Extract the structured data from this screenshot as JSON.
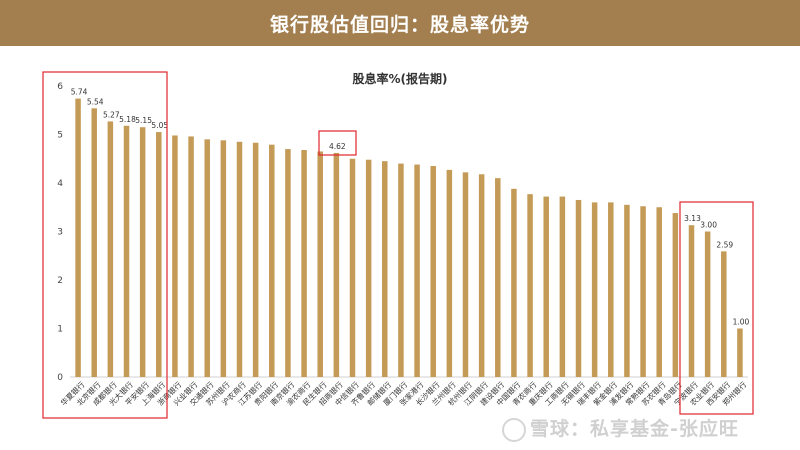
{
  "header": {
    "title": "银行股估值回归：股息率优势"
  },
  "watermark": {
    "text": "雪球：私享基金-张应旺",
    "logo_icon": "snowball-logo-icon"
  },
  "colors": {
    "bar": "#c49a57",
    "header": "#a37f4f",
    "highlight": "#e0262b"
  },
  "chart_data": {
    "type": "bar",
    "title": "股息率%(报告期)",
    "xlabel": "",
    "ylabel": "",
    "ylim": [
      0,
      6
    ],
    "yticks": [
      0,
      1,
      2,
      3,
      4,
      5,
      6
    ],
    "grid": false,
    "legend": "none",
    "categories": [
      "华夏银行",
      "北京银行",
      "成都银行",
      "光大银行",
      "平安银行",
      "上海银行",
      "浙商银行",
      "兴业银行",
      "交通银行",
      "苏州银行",
      "沪农商行",
      "江苏银行",
      "贵阳银行",
      "南京银行",
      "渝农商行",
      "民生银行",
      "招商银行",
      "中信银行",
      "齐鲁银行",
      "邮储银行",
      "厦门银行",
      "张家港行",
      "长沙银行",
      "兰州银行",
      "杭州银行",
      "江阴银行",
      "建设银行",
      "中国银行",
      "青农商行",
      "重庆银行",
      "工商银行",
      "无锡银行",
      "瑞丰银行",
      "紫金银行",
      "浦发银行",
      "常熟银行",
      "苏农银行",
      "青岛银行",
      "宁波银行",
      "农业银行",
      "西安银行",
      "郑州银行"
    ],
    "values": [
      5.74,
      5.54,
      5.27,
      5.18,
      5.15,
      5.05,
      4.98,
      4.96,
      4.9,
      4.88,
      4.85,
      4.83,
      4.79,
      4.7,
      4.68,
      4.65,
      4.62,
      4.5,
      4.48,
      4.45,
      4.4,
      4.38,
      4.35,
      4.27,
      4.22,
      4.18,
      4.1,
      3.88,
      3.77,
      3.72,
      3.72,
      3.65,
      3.6,
      3.6,
      3.55,
      3.52,
      3.5,
      3.38,
      3.13,
      3.0,
      2.59,
      1.0
    ],
    "value_labels": {
      "0": "5.74",
      "1": "5.54",
      "2": "5.27",
      "3": "5.18",
      "4": "5.15",
      "5": "5.05",
      "16": "4.62",
      "38": "3.13",
      "39": "3.00",
      "40": "2.59",
      "41": "1.00"
    },
    "highlight_groups": [
      {
        "name": "top-yield-group",
        "start": 0,
        "end": 5
      },
      {
        "name": "mid-highlight",
        "start": 16,
        "end": 16
      },
      {
        "name": "low-yield-group",
        "start": 38,
        "end": 41
      }
    ]
  }
}
